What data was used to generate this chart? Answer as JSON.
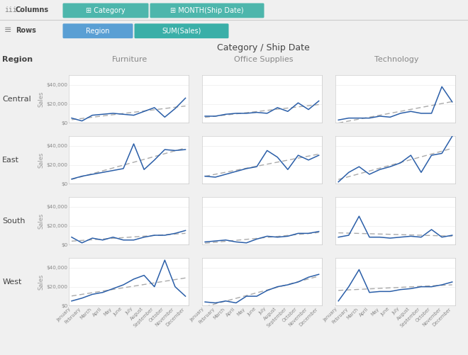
{
  "regions": [
    "Central",
    "East",
    "South",
    "West"
  ],
  "categories": [
    "Furniture",
    "Office Supplies",
    "Technology"
  ],
  "months": [
    "January",
    "February",
    "March",
    "April",
    "May",
    "June",
    "July",
    "August",
    "September",
    "October",
    "November",
    "December"
  ],
  "sales_data": {
    "Central": {
      "Furniture": [
        5000,
        2000,
        8000,
        9000,
        10000,
        9000,
        8000,
        12000,
        16000,
        6000,
        15000,
        26000
      ],
      "Office Supplies": [
        7000,
        7000,
        9000,
        10000,
        10000,
        11000,
        10000,
        16000,
        12000,
        21000,
        14000,
        23000
      ],
      "Technology": [
        3000,
        5000,
        5000,
        5000,
        7000,
        6000,
        10000,
        12000,
        10000,
        10000,
        38000,
        22000
      ]
    },
    "East": {
      "Furniture": [
        5000,
        8000,
        10000,
        12000,
        14000,
        16000,
        42000,
        15000,
        25000,
        36000,
        35000,
        36000
      ],
      "Office Supplies": [
        8000,
        7000,
        10000,
        13000,
        16000,
        18000,
        35000,
        28000,
        15000,
        30000,
        25000,
        30000
      ],
      "Technology": [
        2000,
        12000,
        18000,
        10000,
        15000,
        18000,
        22000,
        30000,
        12000,
        30000,
        32000,
        50000
      ]
    },
    "South": {
      "Furniture": [
        8000,
        2000,
        7000,
        5000,
        8000,
        5000,
        5000,
        8000,
        10000,
        10000,
        12000,
        15000
      ],
      "Office Supplies": [
        3000,
        4000,
        5000,
        3000,
        2000,
        6000,
        9000,
        8000,
        9000,
        12000,
        12000,
        14000
      ],
      "Technology": [
        8000,
        10000,
        30000,
        8000,
        8000,
        7000,
        8000,
        9000,
        8000,
        16000,
        8000,
        10000
      ]
    },
    "West": {
      "Furniture": [
        5000,
        8000,
        12000,
        14000,
        18000,
        22000,
        28000,
        32000,
        20000,
        48000,
        20000,
        10000
      ],
      "Office Supplies": [
        4000,
        3000,
        5000,
        3000,
        10000,
        10000,
        16000,
        20000,
        22000,
        25000,
        30000,
        33000
      ],
      "Technology": [
        5000,
        20000,
        38000,
        14000,
        15000,
        15000,
        17000,
        18000,
        20000,
        20000,
        22000,
        25000
      ]
    }
  },
  "line_color": "#2a5ea8",
  "trend_color": "#aaaaaa",
  "bg_color": "#f0f0f0",
  "plot_bg": "#ffffff",
  "title": "Category / Ship Date",
  "col_header_color": "#888888",
  "axis_label_color": "#999999",
  "tick_color": "#888888",
  "grid_color": "#e8e8e8",
  "pill_teal": "#4db6ac",
  "pill_blue": "#5a9fd4",
  "pill_green": "#3aafa8",
  "sep_color": "#cccccc"
}
